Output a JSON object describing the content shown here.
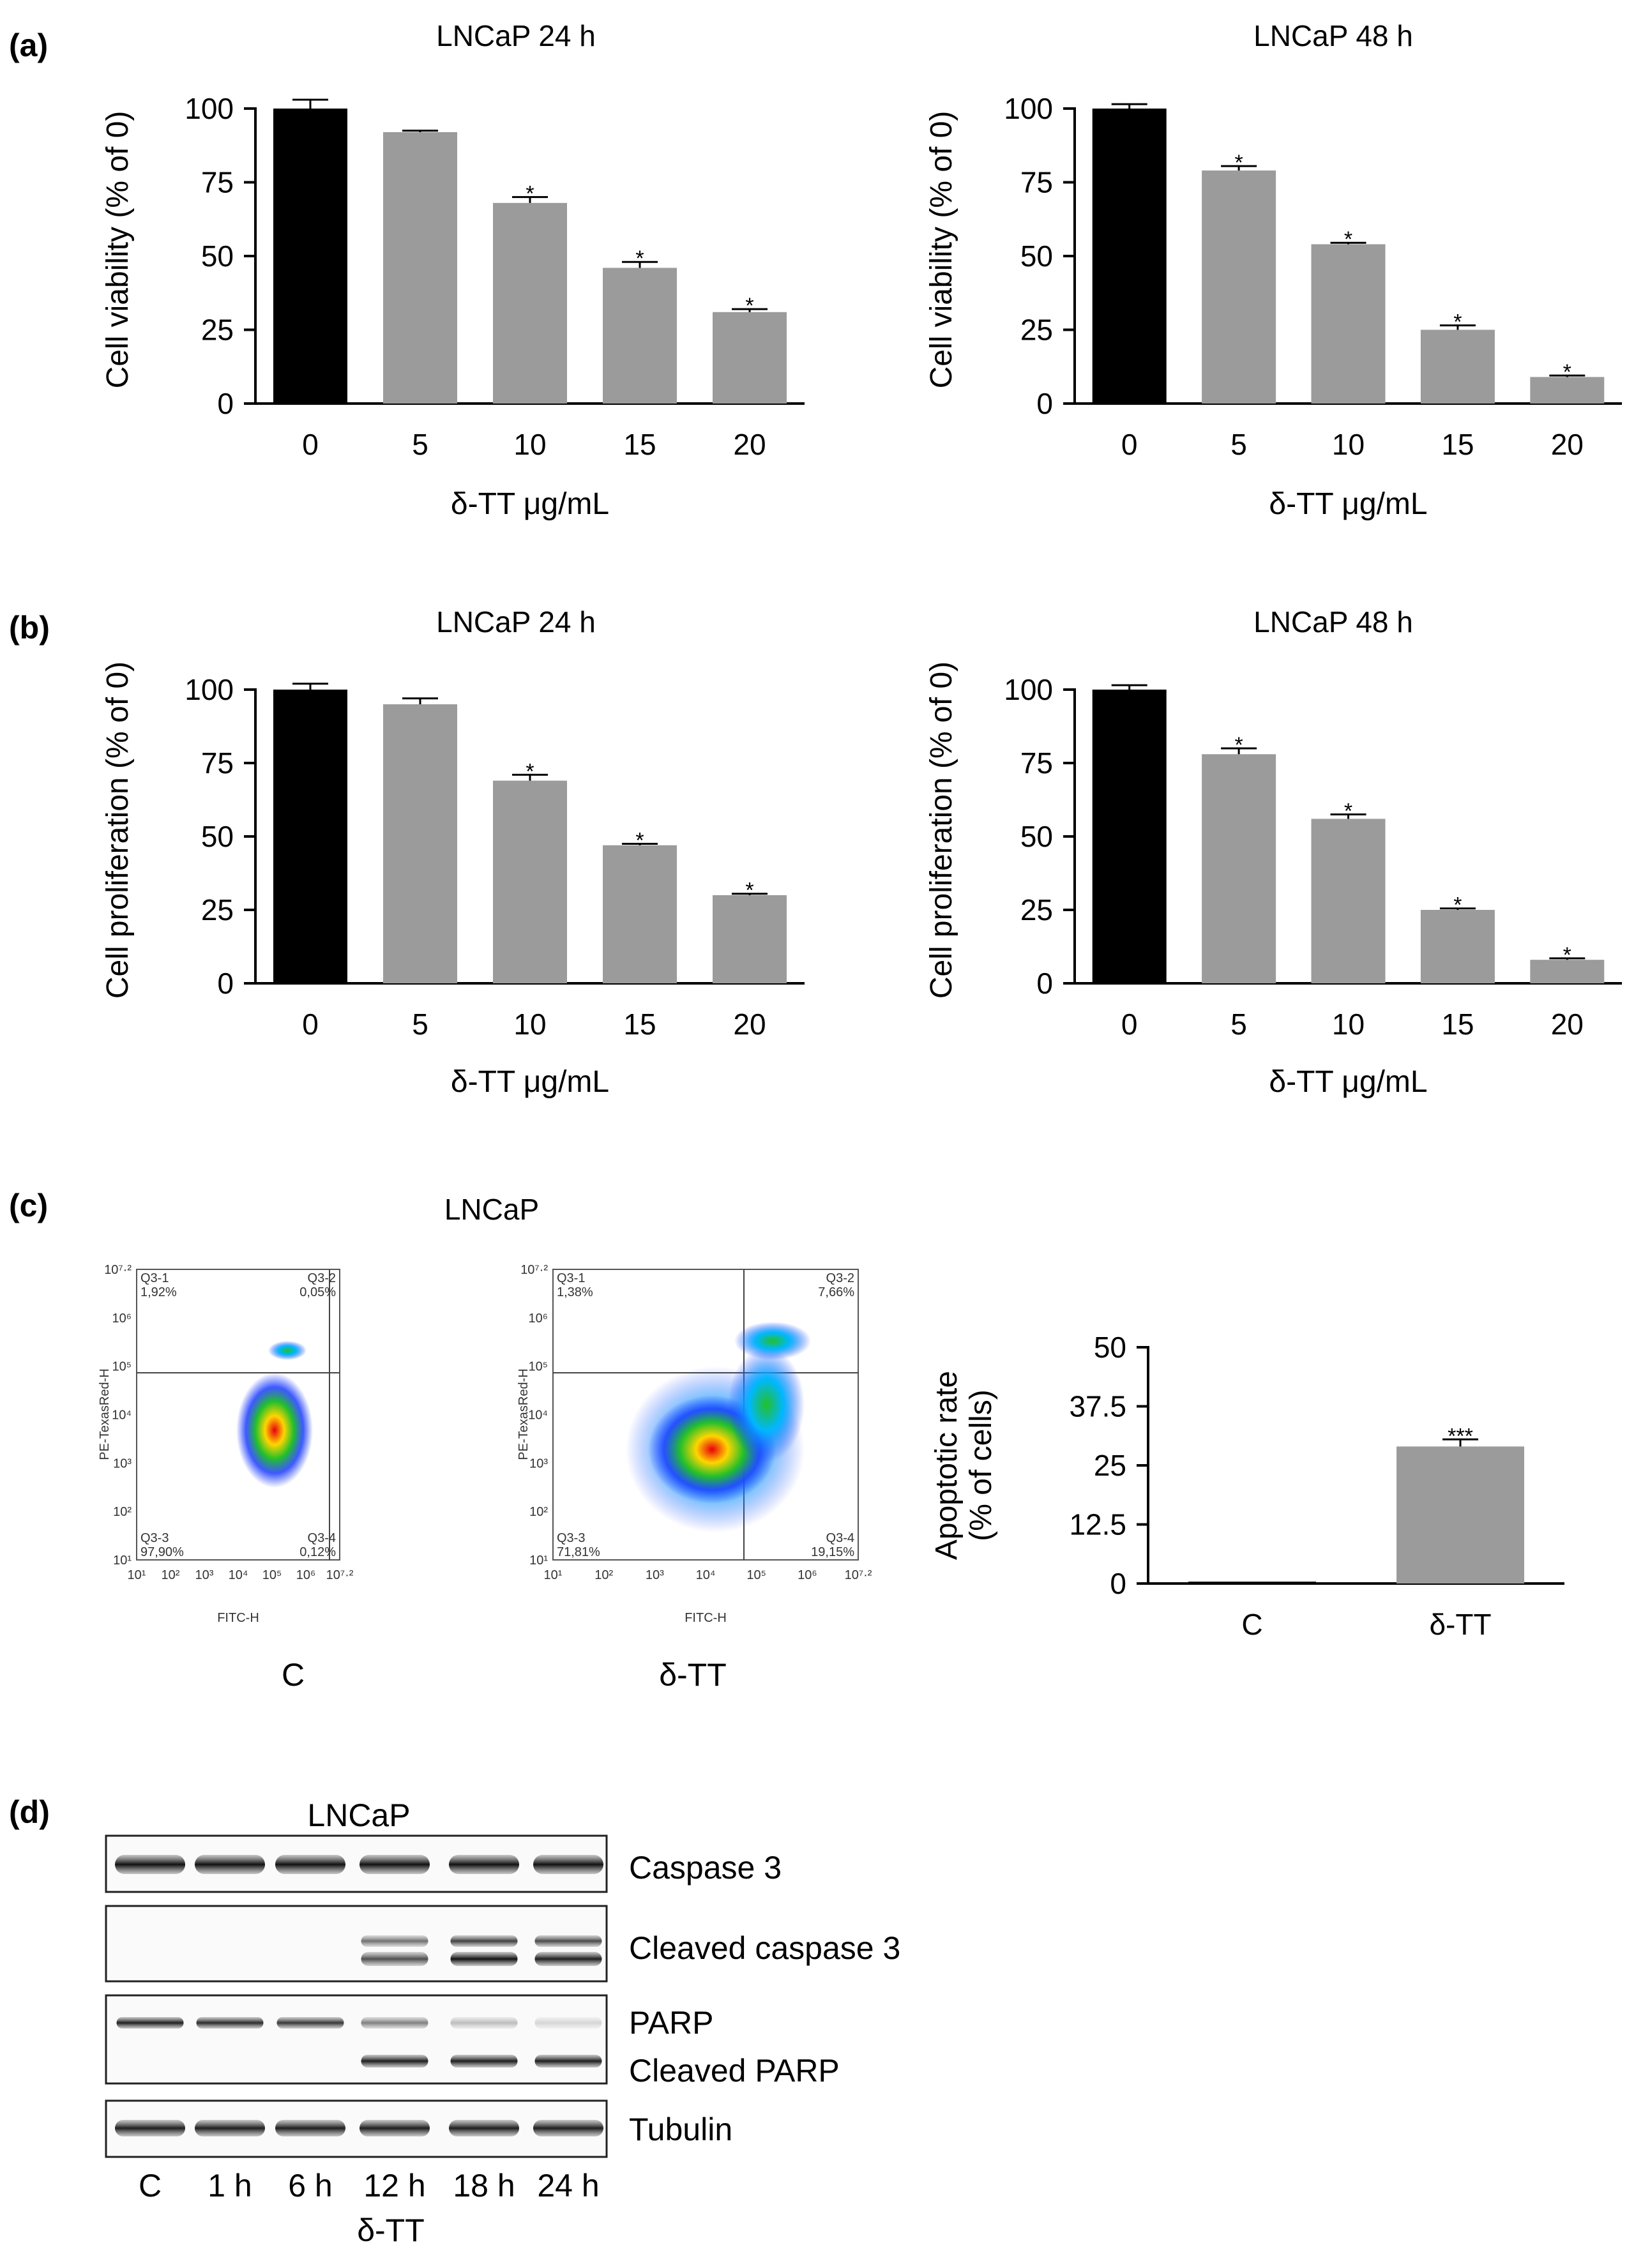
{
  "panels": {
    "a": "(a)",
    "b": "(b)",
    "c": "(c)",
    "d": "(d)"
  },
  "colors": {
    "control": "#000000",
    "treated": "#9b9b9b",
    "axis": "#000000"
  },
  "chart_data": [
    {
      "id": "a1",
      "type": "bar",
      "title": "LNCaP 24 h",
      "xlabel": "δ-TT μg/mL",
      "ylabel": "Cell viability (% of 0)",
      "categories": [
        "0",
        "5",
        "10",
        "15",
        "20"
      ],
      "values": [
        100,
        92,
        68,
        46,
        31
      ],
      "errors": [
        3,
        0.5,
        2,
        2,
        1
      ],
      "stars": [
        "",
        "",
        "*",
        "*",
        "*"
      ],
      "ylim": [
        0,
        100
      ],
      "yticks": [
        0,
        25,
        50,
        75,
        100
      ],
      "ytick_labels": [
        "0",
        "25",
        "50",
        "75",
        "100"
      ]
    },
    {
      "id": "a2",
      "type": "bar",
      "title": "LNCaP 48 h",
      "xlabel": "δ-TT μg/mL",
      "ylabel": "Cell viability (% of 0)",
      "categories": [
        "0",
        "5",
        "10",
        "15",
        "20"
      ],
      "values": [
        100,
        79,
        54,
        25,
        9
      ],
      "errors": [
        1.5,
        1.5,
        0.5,
        1.5,
        0.5
      ],
      "stars": [
        "",
        "*",
        "*",
        "*",
        "*"
      ],
      "ylim": [
        0,
        100
      ],
      "yticks": [
        0,
        25,
        50,
        75,
        100
      ],
      "ytick_labels": [
        "0",
        "25",
        "50",
        "75",
        "100"
      ]
    },
    {
      "id": "b1",
      "type": "bar",
      "title": "LNCaP 24 h",
      "xlabel": "δ-TT μg/mL",
      "ylabel": "Cell proliferation (% of 0)",
      "categories": [
        "0",
        "5",
        "10",
        "15",
        "20"
      ],
      "values": [
        100,
        95,
        69,
        47,
        30
      ],
      "errors": [
        2,
        2,
        2,
        0.5,
        0.5
      ],
      "stars": [
        "",
        "",
        "*",
        "*",
        "*"
      ],
      "ylim": [
        0,
        100
      ],
      "yticks": [
        0,
        25,
        50,
        75,
        100
      ],
      "ytick_labels": [
        "0",
        "25",
        "50",
        "75",
        "100"
      ]
    },
    {
      "id": "b2",
      "type": "bar",
      "title": "LNCaP 48 h",
      "xlabel": "δ-TT μg/mL",
      "ylabel": "Cell proliferation (% of 0)",
      "categories": [
        "0",
        "5",
        "10",
        "15",
        "20"
      ],
      "values": [
        100,
        78,
        56,
        25,
        8
      ],
      "errors": [
        1.5,
        2,
        1.5,
        0.5,
        0.5
      ],
      "stars": [
        "",
        "*",
        "*",
        "*",
        "*"
      ],
      "ylim": [
        0,
        100
      ],
      "yticks": [
        0,
        25,
        50,
        75,
        100
      ],
      "ytick_labels": [
        "0",
        "25",
        "50",
        "75",
        "100"
      ]
    },
    {
      "id": "c_bar",
      "type": "bar",
      "title": "",
      "xlabel": "",
      "ylabel": "Apoptotic rate",
      "ylabel2": "(% of cells)",
      "categories": [
        "C",
        "δ-TT"
      ],
      "values": [
        0.4,
        29
      ],
      "errors": [
        0,
        1.5
      ],
      "stars": [
        "",
        "***"
      ],
      "ylim": [
        0,
        50
      ],
      "yticks": [
        0,
        12.5,
        25,
        37.5,
        50
      ],
      "ytick_labels": [
        "0",
        "12.5",
        "25",
        "37.5",
        "50"
      ]
    }
  ],
  "flow": {
    "title": "LNCaP",
    "xaxis": "FITC-H",
    "yaxis": "PE-TexasRed-H",
    "ticks": [
      "10¹",
      "10²",
      "10³",
      "10⁴",
      "10⁵",
      "10⁶",
      "10⁷·²"
    ],
    "plots": [
      {
        "label": "C",
        "quads": [
          "Q3-1",
          "1,92%",
          "Q3-2",
          "0,05%",
          "Q3-3",
          "97,90%",
          "Q3-4",
          "0,12%"
        ]
      },
      {
        "label": "δ-TT",
        "quads": [
          "Q3-1",
          "1,38%",
          "Q3-2",
          "7,66%",
          "Q3-3",
          "71,81%",
          "Q3-4",
          "19,15%"
        ]
      }
    ]
  },
  "blot": {
    "title": "LNCaP",
    "lanes": [
      "C",
      "1 h",
      "6 h",
      "12 h",
      "18 h",
      "24 h"
    ],
    "treatment": "δ-TT",
    "rows": [
      {
        "labels": [
          "Caspase 3"
        ]
      },
      {
        "labels": [
          "Cleaved caspase 3"
        ]
      },
      {
        "labels": [
          "PARP",
          "Cleaved PARP"
        ]
      },
      {
        "labels": [
          "Tubulin"
        ]
      }
    ]
  }
}
